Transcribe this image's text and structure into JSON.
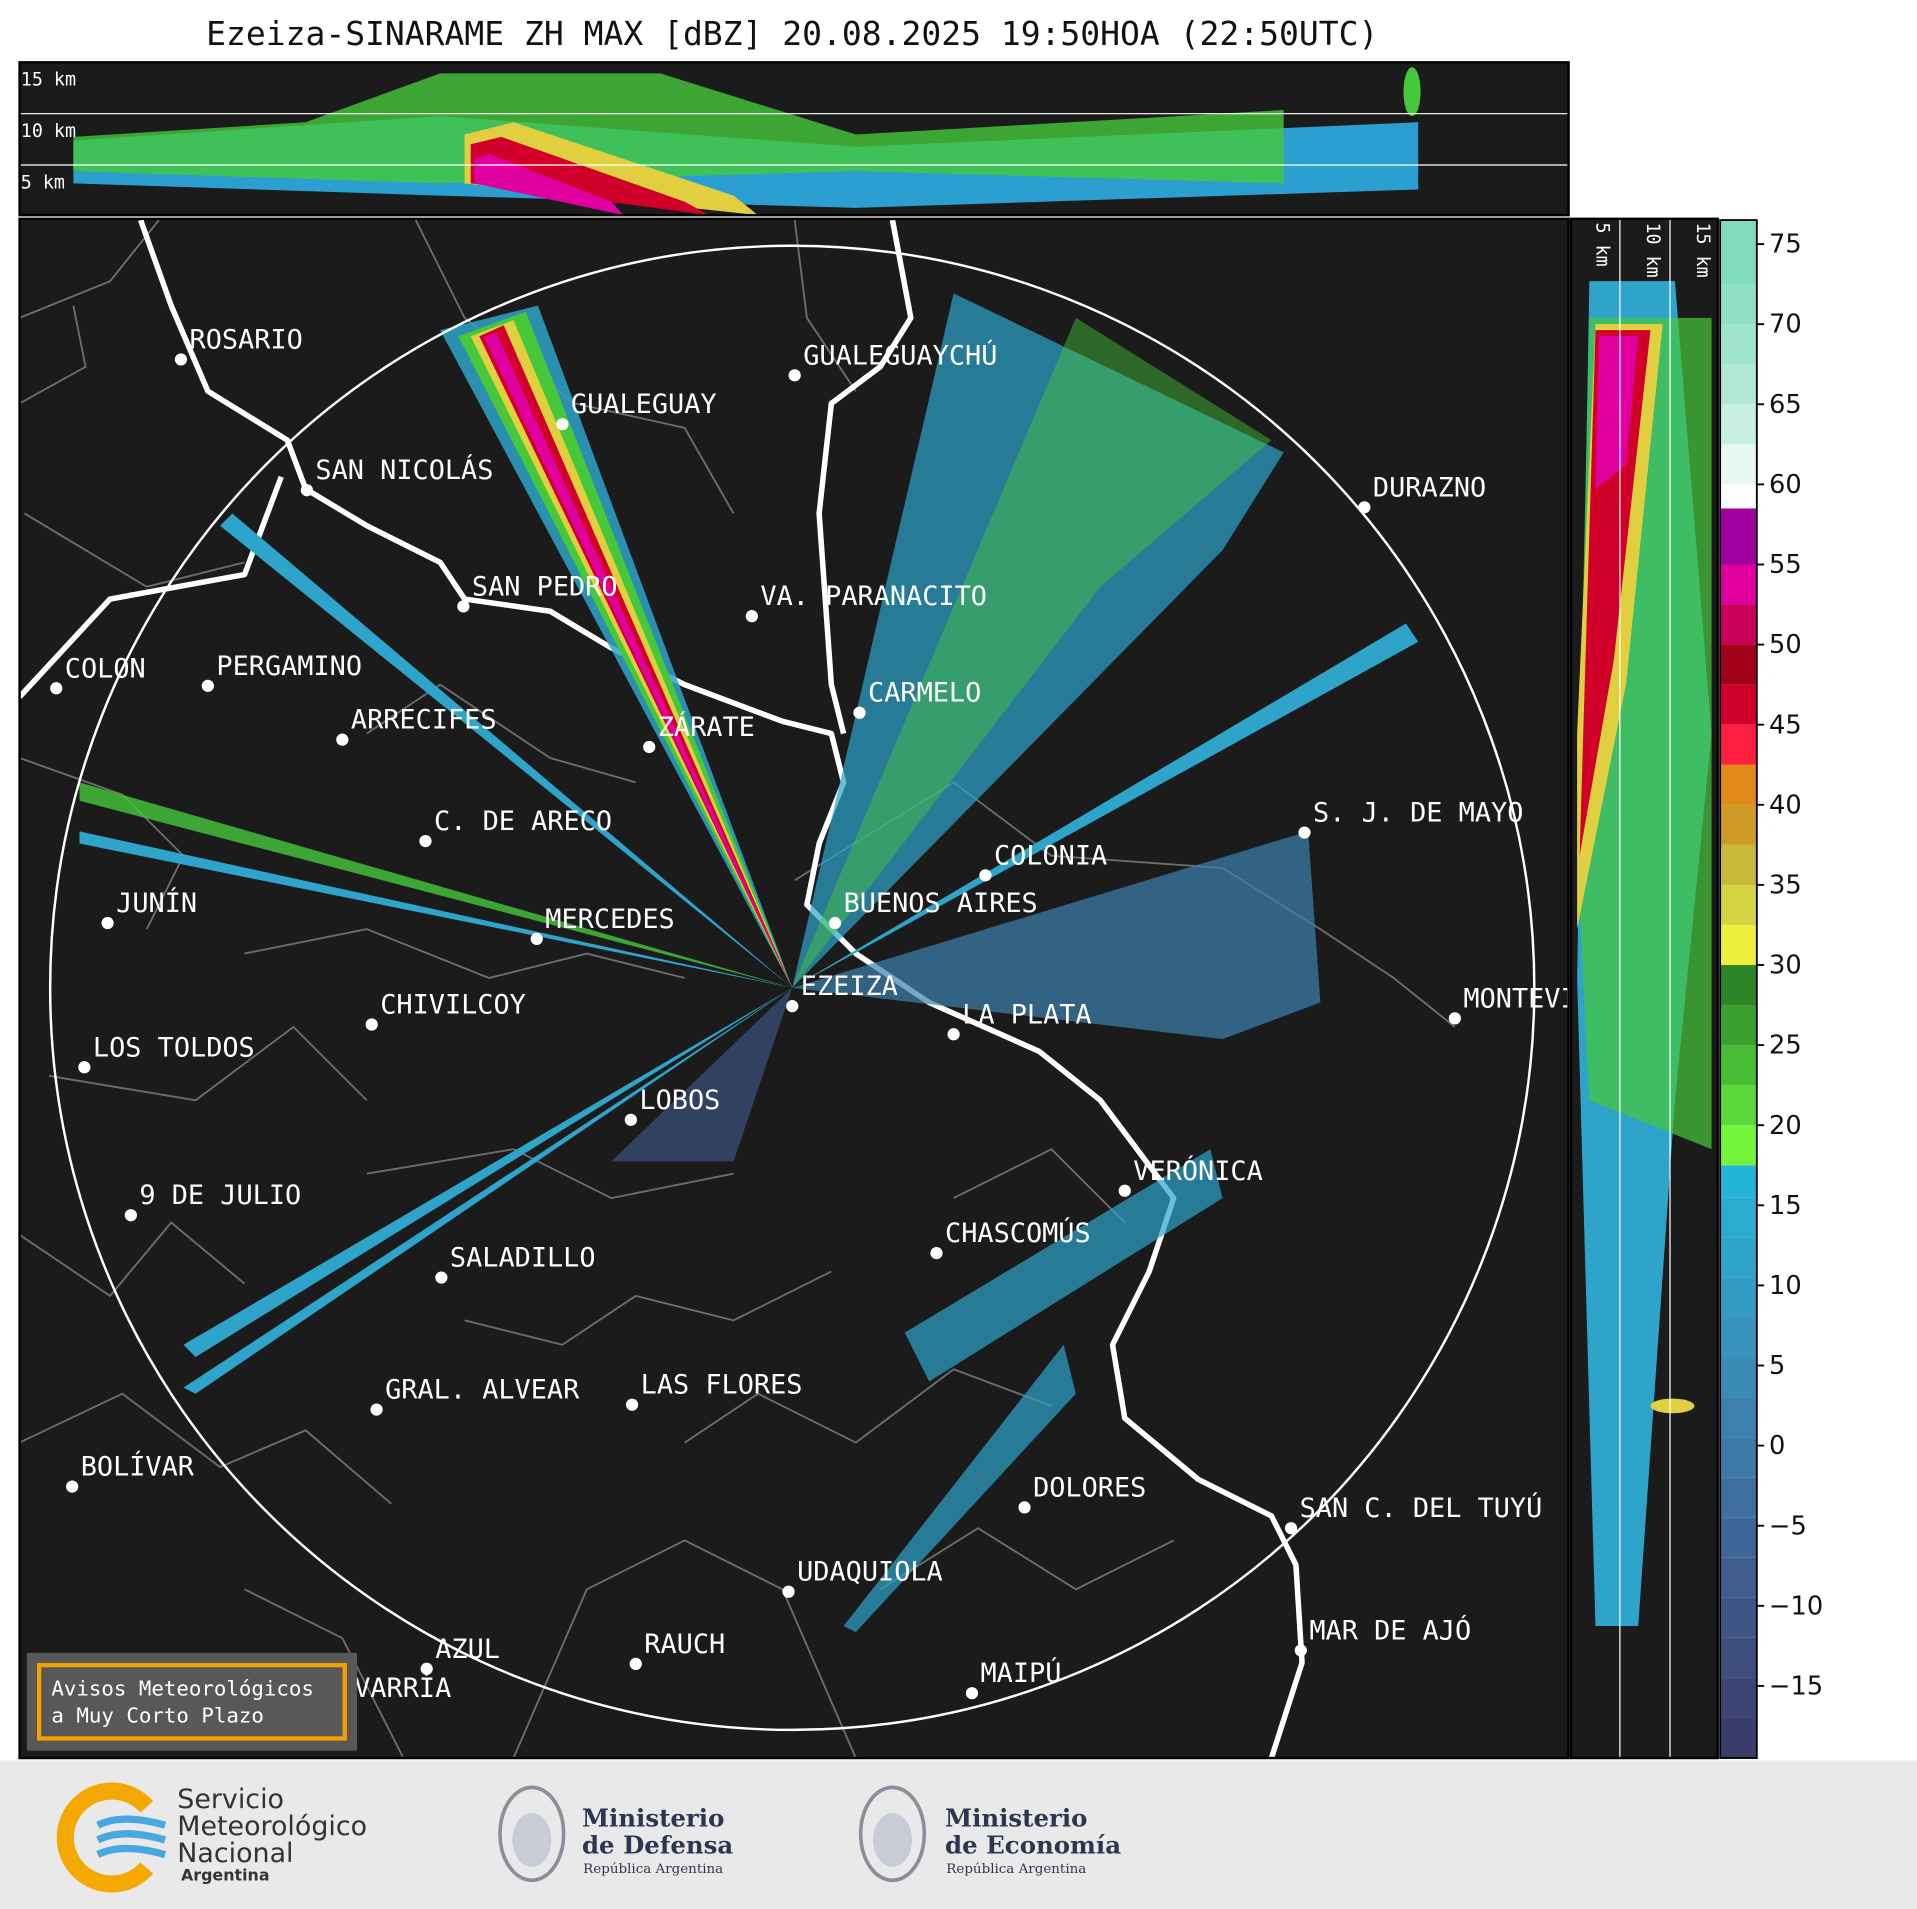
{
  "title": "Ezeiza-SINARAME ZH MAX [dBZ] 20.08.2025 19:50HOA (22:50UTC)",
  "top_panel": {
    "labels": [
      "15 km",
      "10 km",
      "5 km"
    ]
  },
  "side_panel": {
    "labels": [
      "5 km",
      "10 km",
      "15 km"
    ]
  },
  "colorbar": {
    "lim": [
      -19.5,
      76.5
    ],
    "ticks": [
      75,
      70,
      65,
      60,
      55,
      50,
      45,
      40,
      35,
      30,
      25,
      20,
      15,
      10,
      5,
      0,
      {
        "value": -5,
        "label": "−5"
      },
      {
        "value": -10,
        "label": "−10"
      },
      {
        "value": -15,
        "label": "−15"
      }
    ],
    "bounds": [
      -19.5,
      -17,
      -14.5,
      -12,
      -9.5,
      -7,
      -4.5,
      -2,
      0.5,
      3,
      5.5,
      8,
      10.5,
      13,
      15.5,
      17.5,
      20,
      22.5,
      25,
      27.5,
      30,
      32.5,
      35,
      37.5,
      40,
      42.5,
      45,
      47.5,
      50,
      52.5,
      55,
      58.5,
      60,
      62.5,
      65,
      67.5,
      70,
      72.5,
      76.5
    ],
    "colors": [
      "#3a3d6b",
      "#3c4575",
      "#3d4d7e",
      "#3e5586",
      "#3f5e8e",
      "#3f6696",
      "#3f6f9e",
      "#3e78a6",
      "#3c81ae",
      "#3a8ab6",
      "#3792bd",
      "#339bc3",
      "#2ea4ca",
      "#29acd0",
      "#23b5d7",
      "#74f53a",
      "#5ad83a",
      "#46bd35",
      "#3aa030",
      "#2e8528",
      "#eeee3c",
      "#d4d442",
      "#c8b83c",
      "#d09a28",
      "#e08a18",
      "#ff2040",
      "#d0002a",
      "#a00018",
      "#c8005a",
      "#e000a0",
      "#a000a0",
      "#ffffff",
      "#e8f8f0",
      "#c8f0e0",
      "#b0e8d4",
      "#a0e4cc",
      "#90e0c4",
      "#80dcbc"
    ]
  },
  "cities": [
    "ROSARIO",
    "GUALEGUAYCHÚ",
    "GUALEGUAY",
    "SAN NICOLÁS",
    "DURAZNO",
    "SAN PEDRO",
    "VA. PARANACITO",
    "COLON",
    "PERGAMINO",
    "CARMELO",
    "ARRECIFES",
    "ZÁRATE",
    "C. DE ARECO",
    "S. J. DE MAYO",
    "COLONIA",
    "JUNÍN",
    "BUENOS AIRES",
    "MERCEDES",
    "EZEIZA",
    "MONTEVIDEO",
    "CHIVILCOY",
    "LA PLATA",
    "LOS TOLDOS",
    "LOBOS",
    "VERÓNICA",
    "9 DE JULIO",
    "CHASCOMÚS",
    "SALADILLO",
    "GRAL. ALVEAR",
    "LAS FLORES",
    "BOLÍVAR",
    "DOLORES",
    "SAN C. DEL TUYÚ",
    "UDAQUIOLA",
    "MAR DE AJÓ",
    "RAUCH",
    "AZUL",
    "OLAVARRÍA",
    "MAIPÚ"
  ],
  "notice": {
    "lines": [
      "Avisos Meteorológicos",
      "a Muy Corto Plazo"
    ]
  },
  "logos": [
    {
      "lines": [
        "Servicio",
        "Meteorológico",
        "Nacional",
        "Argentina"
      ]
    },
    {
      "lines": [
        "Ministerio",
        "de Defensa",
        "República Argentina"
      ]
    },
    {
      "lines": [
        "Ministerio",
        "de Economía",
        "República Argentina"
      ]
    }
  ]
}
